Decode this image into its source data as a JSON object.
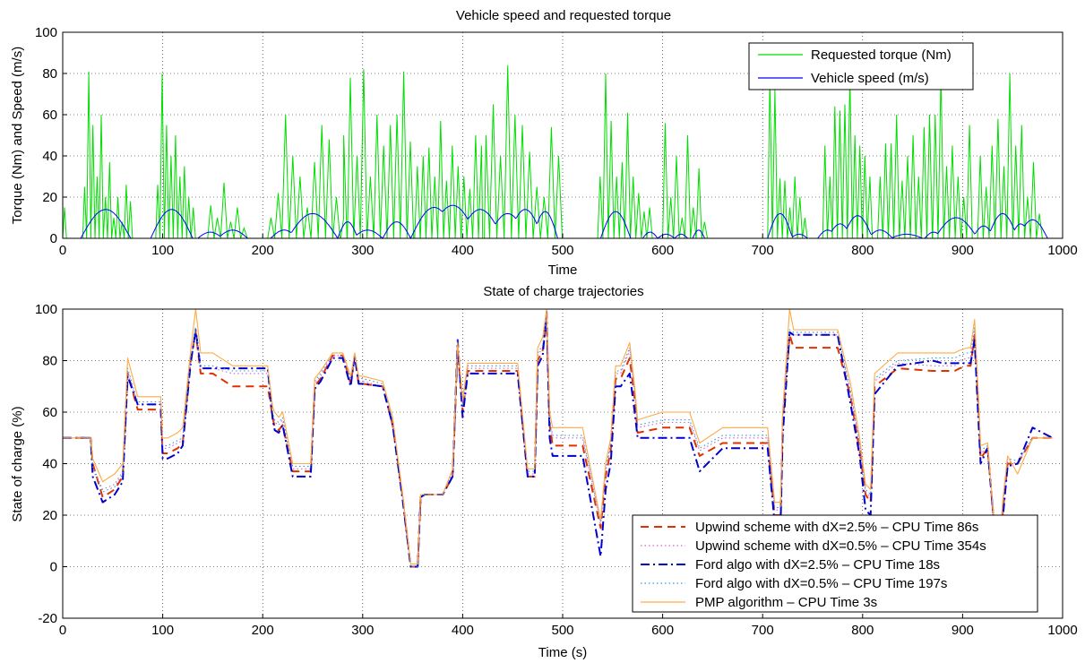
{
  "chart_data": [
    {
      "type": "line",
      "title": "Vehicle speed and requested torque",
      "xlabel": "Time",
      "ylabel": "Torque (Nm) and Speed (m/s)",
      "xlim": [
        0,
        1000
      ],
      "ylim": [
        0,
        100
      ],
      "xticks": [
        0,
        100,
        200,
        300,
        400,
        500,
        600,
        700,
        800,
        900,
        1000
      ],
      "yticks": [
        0,
        20,
        40,
        60,
        80,
        100
      ],
      "grid": true,
      "legend_position": "top-right",
      "series": [
        {
          "name": "Requested torque (Nm)",
          "color": "#00dd00",
          "style": "solid",
          "bursts": [
            {
              "x": 0,
              "w": 4,
              "peaks": [
                15
              ]
            },
            {
              "x": 20,
              "w": 50,
              "peaks": [
                25,
                81,
                55,
                30,
                60,
                20,
                37,
                10,
                20,
                8,
                26,
                18
              ]
            },
            {
              "x": 93,
              "w": 40,
              "peaks": [
                26,
                80,
                55,
                40,
                50,
                30,
                35,
                20,
                15
              ]
            },
            {
              "x": 145,
              "w": 40,
              "peaks": [
                16,
                10,
                27,
                8,
                15,
                5
              ]
            },
            {
              "x": 205,
              "w": 80,
              "peaks": [
                10,
                22,
                60,
                40,
                30,
                15,
                37,
                55,
                48,
                20,
                10
              ]
            },
            {
              "x": 278,
              "w": 80,
              "peaks": [
                50,
                78,
                40,
                82,
                30,
                60,
                45,
                55,
                60,
                81,
                47,
                30
              ]
            },
            {
              "x": 352,
              "w": 70,
              "peaks": [
                35,
                40,
                44,
                30,
                57,
                28,
                45,
                35,
                30,
                24,
                50,
                45
              ]
            },
            {
              "x": 420,
              "w": 80,
              "peaks": [
                50,
                65,
                40,
                84,
                60,
                55,
                42,
                25,
                20,
                54,
                40
              ]
            },
            {
              "x": 535,
              "w": 55,
              "peaks": [
                30,
                80,
                57,
                30,
                37,
                61,
                30,
                22,
                13,
                15
              ]
            },
            {
              "x": 600,
              "w": 45,
              "peaks": [
                56,
                20,
                40,
                10,
                50,
                15,
                34,
                8
              ]
            },
            {
              "x": 705,
              "w": 40,
              "peaks": [
                80,
                72,
                29,
                28,
                15,
                30,
                20,
                10
              ]
            },
            {
              "x": 760,
              "w": 50,
              "peaks": [
                45,
                30,
                64,
                62,
                65,
                80,
                50,
                45,
                40,
                30
              ]
            },
            {
              "x": 815,
              "w": 55,
              "peaks": [
                30,
                46,
                46,
                60,
                28,
                40,
                50,
                30,
                54,
                60
              ]
            },
            {
              "x": 870,
              "w": 40,
              "peaks": [
                60,
                80,
                35,
                45,
                30,
                20,
                55
              ]
            },
            {
              "x": 915,
              "w": 65,
              "peaks": [
                40,
                25,
                45,
                58,
                35,
                80,
                45,
                55,
                20,
                37,
                12
              ]
            }
          ]
        },
        {
          "name": "Vehicle speed (m/s)",
          "color": "#0000ff",
          "style": "solid",
          "humps": [
            {
              "x0": 18,
              "x1": 68,
              "peak": 14
            },
            {
              "x0": 88,
              "x1": 130,
              "peak": 14
            },
            {
              "x0": 135,
              "x1": 160,
              "peak": 3
            },
            {
              "x0": 155,
              "x1": 185,
              "peak": 4
            },
            {
              "x0": 208,
              "x1": 235,
              "peak": 4
            },
            {
              "x0": 225,
              "x1": 275,
              "peak": 12
            },
            {
              "x0": 275,
              "x1": 295,
              "peak": 8
            },
            {
              "x0": 290,
              "x1": 320,
              "peak": 4
            },
            {
              "x0": 320,
              "x1": 348,
              "peak": 8
            },
            {
              "x0": 348,
              "x1": 395,
              "peak": 15
            },
            {
              "x0": 365,
              "x1": 415,
              "peak": 16
            },
            {
              "x0": 395,
              "x1": 440,
              "peak": 14
            },
            {
              "x0": 425,
              "x1": 465,
              "peak": 12
            },
            {
              "x0": 445,
              "x1": 480,
              "peak": 14
            },
            {
              "x0": 470,
              "x1": 495,
              "peak": 13
            },
            {
              "x0": 538,
              "x1": 568,
              "peak": 13
            },
            {
              "x0": 580,
              "x1": 595,
              "peak": 3
            },
            {
              "x0": 595,
              "x1": 612,
              "peak": 2
            },
            {
              "x0": 612,
              "x1": 625,
              "peak": 2
            },
            {
              "x0": 630,
              "x1": 642,
              "peak": 4
            },
            {
              "x0": 705,
              "x1": 730,
              "peak": 12
            },
            {
              "x0": 728,
              "x1": 745,
              "peak": 2
            },
            {
              "x0": 755,
              "x1": 775,
              "peak": 4
            },
            {
              "x0": 765,
              "x1": 790,
              "peak": 7
            },
            {
              "x0": 780,
              "x1": 810,
              "peak": 11
            },
            {
              "x0": 805,
              "x1": 830,
              "peak": 4
            },
            {
              "x0": 828,
              "x1": 860,
              "peak": 2
            },
            {
              "x0": 862,
              "x1": 880,
              "peak": 3
            },
            {
              "x0": 872,
              "x1": 915,
              "peak": 10
            },
            {
              "x0": 910,
              "x1": 932,
              "peak": 6
            },
            {
              "x0": 925,
              "x1": 955,
              "peak": 12
            },
            {
              "x0": 948,
              "x1": 968,
              "peak": 7
            },
            {
              "x0": 955,
              "x1": 985,
              "peak": 9
            }
          ]
        }
      ]
    },
    {
      "type": "line",
      "title": "State of charge trajectories",
      "xlabel": "Time (s)",
      "ylabel": "State of charge (%)",
      "xlim": [
        0,
        1000
      ],
      "ylim": [
        -20,
        100
      ],
      "xticks": [
        0,
        100,
        200,
        300,
        400,
        500,
        600,
        700,
        800,
        900,
        1000
      ],
      "yticks": [
        -20,
        0,
        20,
        40,
        60,
        80,
        100
      ],
      "grid": true,
      "legend_position": "bottom-right",
      "x": [
        0,
        28,
        30,
        40,
        52,
        60,
        65,
        75,
        98,
        100,
        105,
        115,
        120,
        128,
        133,
        138,
        150,
        170,
        205,
        210,
        212,
        216,
        220,
        230,
        248,
        252,
        258,
        270,
        280,
        288,
        292,
        296,
        300,
        320,
        330,
        340,
        348,
        355,
        358,
        362,
        380,
        390,
        395,
        400,
        405,
        410,
        455,
        465,
        472,
        475,
        480,
        484,
        487,
        490,
        520,
        538,
        543,
        548,
        553,
        558,
        567,
        572,
        575,
        600,
        627,
        637,
        660,
        705,
        712,
        718,
        720,
        727,
        731,
        775,
        788,
        797,
        803,
        808,
        812,
        835,
        870,
        880,
        892,
        897,
        905,
        908,
        912,
        916,
        918,
        925,
        935,
        940,
        945,
        955,
        970,
        990
      ],
      "series": [
        {
          "name": "Upwind scheme with dX=2.5% – CPU Time 86s",
          "color": "#dd3300",
          "style": "dashed",
          "values": [
            50,
            50,
            40,
            27,
            30,
            35,
            75,
            61,
            61,
            44,
            44,
            46,
            48,
            80,
            91,
            75,
            75,
            70,
            70,
            58,
            54,
            53,
            55,
            37,
            37,
            70,
            73,
            82,
            82,
            71,
            82,
            71,
            71,
            70,
            55,
            27,
            0,
            0,
            27,
            28,
            28,
            35,
            85,
            60,
            76,
            76,
            76,
            35,
            35,
            80,
            84,
            96,
            55,
            47,
            47,
            15,
            35,
            45,
            73,
            73,
            81,
            65,
            52,
            54,
            54,
            43,
            48,
            48,
            20,
            20,
            55,
            90,
            85,
            85,
            66,
            45,
            28,
            25,
            70,
            77,
            76,
            76,
            76,
            77,
            78,
            78,
            90,
            60,
            42,
            46,
            0,
            20,
            40,
            40,
            50,
            50
          ]
        },
        {
          "name": "Upwind scheme with dX=0.5% – CPU Time 354s",
          "color": "#cc66cc",
          "style": "dotted",
          "values": [
            50,
            50,
            39,
            30,
            32,
            37,
            76,
            63,
            63,
            46,
            46,
            48,
            49,
            80,
            90,
            77,
            77,
            75,
            75,
            59,
            56,
            55,
            57,
            38,
            38,
            71,
            74,
            82,
            82,
            72,
            82,
            72,
            72,
            70,
            56,
            27,
            0,
            0,
            28,
            28,
            28,
            36,
            86,
            62,
            77,
            77,
            77,
            36,
            36,
            82,
            85,
            97,
            56,
            50,
            50,
            16,
            37,
            47,
            75,
            75,
            84,
            67,
            54,
            56,
            56,
            45,
            50,
            50,
            22,
            22,
            56,
            90,
            90,
            90,
            67,
            47,
            29,
            27,
            72,
            79,
            78,
            78,
            78,
            80,
            81,
            81,
            92,
            62,
            44,
            46,
            0,
            22,
            41,
            40,
            50,
            50
          ]
        },
        {
          "name": "Ford algo with dX=2.5% – CPU Time 18s",
          "color": "#0000cc",
          "style": "dashdot",
          "values": [
            50,
            50,
            35,
            25,
            28,
            33,
            74,
            63,
            63,
            42,
            42,
            44,
            47,
            79,
            92,
            77,
            77,
            77,
            77,
            57,
            53,
            52,
            55,
            35,
            35,
            69,
            72,
            81,
            81,
            70,
            82,
            71,
            71,
            70,
            55,
            26,
            0,
            0,
            27,
            28,
            28,
            35,
            88,
            58,
            75,
            75,
            75,
            35,
            35,
            78,
            82,
            99,
            50,
            43,
            43,
            4,
            30,
            40,
            70,
            70,
            75,
            60,
            50,
            50,
            50,
            37,
            46,
            46,
            17,
            17,
            50,
            91,
            90,
            90,
            63,
            43,
            22,
            20,
            67,
            78,
            80,
            79,
            79,
            79,
            79,
            79,
            88,
            55,
            40,
            46,
            0,
            18,
            39,
            40,
            54,
            50
          ]
        },
        {
          "name": "Ford algo with dX=0.5% – CPU Time 197s",
          "color": "#3399dd",
          "style": "dotted",
          "values": [
            50,
            50,
            38,
            29,
            31,
            36,
            77,
            64,
            64,
            47,
            47,
            49,
            50,
            81,
            93,
            78,
            78,
            76,
            76,
            60,
            57,
            56,
            58,
            39,
            39,
            72,
            75,
            83,
            83,
            73,
            83,
            73,
            73,
            71,
            57,
            28,
            0,
            0,
            28,
            28,
            28,
            37,
            88,
            63,
            78,
            78,
            78,
            37,
            37,
            83,
            86,
            98,
            57,
            51,
            51,
            17,
            38,
            48,
            76,
            76,
            85,
            68,
            55,
            57,
            57,
            46,
            51,
            51,
            23,
            23,
            57,
            92,
            91,
            91,
            68,
            48,
            30,
            28,
            73,
            80,
            81,
            81,
            81,
            82,
            83,
            83,
            93,
            63,
            45,
            47,
            0,
            23,
            42,
            41,
            50,
            50
          ]
        },
        {
          "name": "PMP algorithm – CPU Time 3s",
          "color": "#ffaa44",
          "style": "solid",
          "values": [
            50,
            50,
            42,
            33,
            36,
            40,
            81,
            66,
            66,
            50,
            50,
            52,
            54,
            84,
            100,
            83,
            83,
            78,
            78,
            62,
            60,
            58,
            60,
            40,
            40,
            73,
            76,
            83,
            83,
            74,
            83,
            74,
            74,
            72,
            58,
            28,
            1,
            1,
            28,
            28,
            28,
            38,
            87,
            65,
            79,
            79,
            79,
            38,
            38,
            85,
            89,
            100,
            60,
            54,
            54,
            18,
            40,
            50,
            78,
            78,
            87,
            70,
            57,
            60,
            60,
            48,
            54,
            54,
            25,
            25,
            60,
            100,
            92,
            92,
            71,
            50,
            32,
            30,
            75,
            83,
            83,
            83,
            83,
            84,
            85,
            85,
            96,
            65,
            47,
            48,
            0,
            25,
            43,
            36,
            50,
            50
          ]
        }
      ]
    }
  ]
}
